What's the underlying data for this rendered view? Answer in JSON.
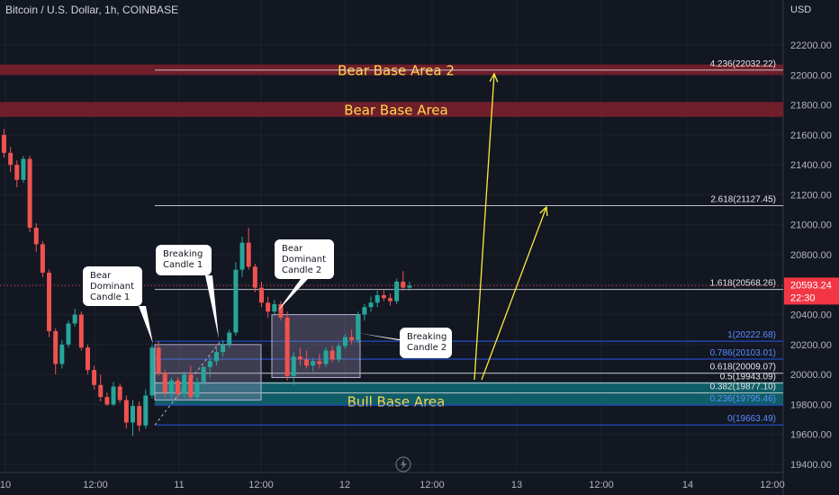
{
  "header": {
    "title": "Bitcoin / U.S. Dollar, 1h, COINBASE",
    "currency": "USD"
  },
  "price": {
    "current": "20593.24",
    "countdown": "22:30"
  },
  "colors": {
    "background": "#131722",
    "bull_candle": "#26a69a",
    "bear_candle": "#ef5350",
    "bear_zone": "#7a1f2b",
    "bull_zone": "#0f6b73",
    "label_yellow": "#ffd84d",
    "fib_white": "#d1d4dc",
    "fib_blue": "#2962ff",
    "arrow_yellow": "#ffeb3b",
    "price_badge": "#f23645"
  },
  "chart_data": {
    "type": "candlestick",
    "title": "Bitcoin / U.S. Dollar, 1h, COINBASE",
    "y_axis": {
      "min": 19400,
      "max": 22400,
      "ticks": [
        "19400.00",
        "19600.00",
        "19800.00",
        "20000.00",
        "20200.00",
        "20400.00",
        "20600.00",
        "20800.00",
        "21000.00",
        "21200.00",
        "21400.00",
        "21600.00",
        "21800.00",
        "22000.00",
        "22200.00"
      ]
    },
    "x_axis": {
      "ticks": [
        "10",
        "12:00",
        "11",
        "12:00",
        "12",
        "12:00",
        "13",
        "12:00",
        "14",
        "12:00"
      ]
    },
    "candles": [
      {
        "o": 21600,
        "h": 21640,
        "l": 21450,
        "c": 21480
      },
      {
        "o": 21480,
        "h": 21520,
        "l": 21350,
        "c": 21400
      },
      {
        "o": 21400,
        "h": 21430,
        "l": 21250,
        "c": 21300
      },
      {
        "o": 21300,
        "h": 21460,
        "l": 21280,
        "c": 21440
      },
      {
        "o": 21440,
        "h": 21460,
        "l": 20950,
        "c": 20980
      },
      {
        "o": 20980,
        "h": 21010,
        "l": 20820,
        "c": 20870
      },
      {
        "o": 20870,
        "h": 20890,
        "l": 20650,
        "c": 20680
      },
      {
        "o": 20680,
        "h": 20700,
        "l": 20250,
        "c": 20290
      },
      {
        "o": 20290,
        "h": 20310,
        "l": 20000,
        "c": 20070
      },
      {
        "o": 20070,
        "h": 20230,
        "l": 20040,
        "c": 20200
      },
      {
        "o": 20200,
        "h": 20360,
        "l": 20180,
        "c": 20340
      },
      {
        "o": 20340,
        "h": 20440,
        "l": 20320,
        "c": 20400
      },
      {
        "o": 20400,
        "h": 20420,
        "l": 20160,
        "c": 20180
      },
      {
        "o": 20180,
        "h": 20200,
        "l": 20000,
        "c": 20030
      },
      {
        "o": 20030,
        "h": 20060,
        "l": 19900,
        "c": 19930
      },
      {
        "o": 19930,
        "h": 20000,
        "l": 19820,
        "c": 19850
      },
      {
        "o": 19850,
        "h": 19880,
        "l": 19790,
        "c": 19800
      },
      {
        "o": 19800,
        "h": 19950,
        "l": 19790,
        "c": 19920
      },
      {
        "o": 19920,
        "h": 19940,
        "l": 19810,
        "c": 19830
      },
      {
        "o": 19830,
        "h": 19860,
        "l": 19640,
        "c": 19680
      },
      {
        "o": 19680,
        "h": 19830,
        "l": 19590,
        "c": 19790
      },
      {
        "o": 19790,
        "h": 19820,
        "l": 19620,
        "c": 19660
      },
      {
        "o": 19660,
        "h": 19900,
        "l": 19640,
        "c": 19860
      },
      {
        "o": 19860,
        "h": 20200,
        "l": 19840,
        "c": 20180
      },
      {
        "o": 20180,
        "h": 20220,
        "l": 19990,
        "c": 20010
      },
      {
        "o": 20010,
        "h": 20030,
        "l": 19850,
        "c": 19880
      },
      {
        "o": 19880,
        "h": 19980,
        "l": 19840,
        "c": 19960
      },
      {
        "o": 19960,
        "h": 19980,
        "l": 19840,
        "c": 19870
      },
      {
        "o": 19870,
        "h": 20020,
        "l": 19840,
        "c": 20000
      },
      {
        "o": 20000,
        "h": 20060,
        "l": 19830,
        "c": 19850
      },
      {
        "o": 19850,
        "h": 19980,
        "l": 19830,
        "c": 19950
      },
      {
        "o": 19950,
        "h": 20060,
        "l": 19930,
        "c": 20050
      },
      {
        "o": 20050,
        "h": 20120,
        "l": 19980,
        "c": 20090
      },
      {
        "o": 20090,
        "h": 20180,
        "l": 20060,
        "c": 20150
      },
      {
        "o": 20150,
        "h": 20230,
        "l": 20120,
        "c": 20200
      },
      {
        "o": 20200,
        "h": 20300,
        "l": 20180,
        "c": 20280
      },
      {
        "o": 20280,
        "h": 20750,
        "l": 20260,
        "c": 20700
      },
      {
        "o": 20700,
        "h": 20920,
        "l": 20650,
        "c": 20880
      },
      {
        "o": 20880,
        "h": 20980,
        "l": 20700,
        "c": 20720
      },
      {
        "o": 20720,
        "h": 20740,
        "l": 20550,
        "c": 20580
      },
      {
        "o": 20580,
        "h": 20620,
        "l": 20450,
        "c": 20480
      },
      {
        "o": 20480,
        "h": 20520,
        "l": 20380,
        "c": 20420
      },
      {
        "o": 20420,
        "h": 20500,
        "l": 20390,
        "c": 20470
      },
      {
        "o": 20470,
        "h": 20490,
        "l": 20360,
        "c": 20380
      },
      {
        "o": 20380,
        "h": 20420,
        "l": 19960,
        "c": 19990
      },
      {
        "o": 19990,
        "h": 20150,
        "l": 19930,
        "c": 20120
      },
      {
        "o": 20120,
        "h": 20180,
        "l": 20060,
        "c": 20100
      },
      {
        "o": 20100,
        "h": 20160,
        "l": 20040,
        "c": 20060
      },
      {
        "o": 20060,
        "h": 20110,
        "l": 20020,
        "c": 20090
      },
      {
        "o": 20090,
        "h": 20140,
        "l": 20040,
        "c": 20070
      },
      {
        "o": 20070,
        "h": 20180,
        "l": 20050,
        "c": 20160
      },
      {
        "o": 20160,
        "h": 20190,
        "l": 20080,
        "c": 20100
      },
      {
        "o": 20100,
        "h": 20210,
        "l": 20080,
        "c": 20190
      },
      {
        "o": 20190,
        "h": 20270,
        "l": 20170,
        "c": 20250
      },
      {
        "o": 20250,
        "h": 20300,
        "l": 20200,
        "c": 20230
      },
      {
        "o": 20230,
        "h": 20420,
        "l": 20210,
        "c": 20400
      },
      {
        "o": 20400,
        "h": 20470,
        "l": 20360,
        "c": 20450
      },
      {
        "o": 20450,
        "h": 20520,
        "l": 20420,
        "c": 20480
      },
      {
        "o": 20480,
        "h": 20560,
        "l": 20450,
        "c": 20530
      },
      {
        "o": 20530,
        "h": 20570,
        "l": 20490,
        "c": 20510
      },
      {
        "o": 20510,
        "h": 20540,
        "l": 20460,
        "c": 20490
      },
      {
        "o": 20490,
        "h": 20640,
        "l": 20470,
        "c": 20620
      },
      {
        "o": 20620,
        "h": 20690,
        "l": 20560,
        "c": 20580
      },
      {
        "o": 20580,
        "h": 20620,
        "l": 20560,
        "c": 20593.24
      }
    ],
    "zones": [
      {
        "name": "Bear Base Area 2",
        "low": 22000,
        "high": 22070,
        "kind": "bear"
      },
      {
        "name": "Bear Base Area",
        "low": 21720,
        "high": 21820,
        "kind": "bear"
      },
      {
        "name": "Bull Base Area",
        "low": 19800,
        "high": 19950,
        "kind": "bull"
      }
    ],
    "fib_levels": [
      {
        "label": "4.236(22032.22)",
        "value": 22032.22,
        "color": "white"
      },
      {
        "label": "2.618(21127.45)",
        "value": 21127.45,
        "color": "white"
      },
      {
        "label": "1.618(20568.26)",
        "value": 20568.26,
        "color": "white"
      },
      {
        "label": "1(20222.68)",
        "value": 20222.68,
        "color": "blue"
      },
      {
        "label": "0.786(20103.01)",
        "value": 20103.01,
        "color": "blue"
      },
      {
        "label": "0.618(20009.07)",
        "value": 20009.07,
        "color": "white"
      },
      {
        "label": "0.5(19943.09)",
        "value": 19943.09,
        "color": "white"
      },
      {
        "label": "0.382(19877.10)",
        "value": 19877.1,
        "color": "white"
      },
      {
        "label": "0.236(19795.46)",
        "value": 19795.46,
        "color": "blue"
      },
      {
        "label": "0(19663.49)",
        "value": 19663.49,
        "color": "blue"
      }
    ],
    "annotations": [
      {
        "lines": [
          "Bear",
          "Dominant",
          "Candle 1"
        ]
      },
      {
        "lines": [
          "Breaking",
          "Candle 1"
        ]
      },
      {
        "lines": [
          "Bear",
          "Dominant",
          "Candle 2"
        ]
      },
      {
        "lines": [
          "Breaking",
          "Candle 2"
        ]
      }
    ]
  }
}
